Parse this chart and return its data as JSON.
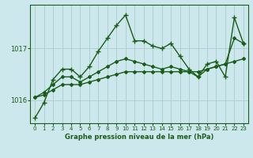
{
  "background_color": "#cce8ec",
  "grid_color": "#aacccc",
  "line_color": "#1a5c1a",
  "marker_color": "#1a5c1a",
  "title": "Graphe pression niveau de la mer (hPa)",
  "xlim": [
    -0.5,
    23.5
  ],
  "ylim": [
    1015.55,
    1017.85
  ],
  "yticks": [
    1016,
    1017
  ],
  "xticks": [
    0,
    1,
    2,
    3,
    4,
    5,
    6,
    7,
    8,
    9,
    10,
    11,
    12,
    13,
    14,
    15,
    16,
    17,
    18,
    19,
    20,
    21,
    22,
    23
  ],
  "series": [
    {
      "x": [
        0,
        1,
        2,
        3,
        4,
        5,
        6,
        7,
        8,
        9,
        10,
        11,
        12,
        13,
        14,
        15,
        16,
        17,
        18,
        19,
        20,
        21,
        22,
        23
      ],
      "y": [
        1016.05,
        1016.1,
        1016.2,
        1016.3,
        1016.3,
        1016.3,
        1016.35,
        1016.4,
        1016.45,
        1016.5,
        1016.55,
        1016.55,
        1016.55,
        1016.55,
        1016.55,
        1016.55,
        1016.55,
        1016.55,
        1016.55,
        1016.6,
        1016.65,
        1016.7,
        1016.75,
        1016.8
      ],
      "marker": "D",
      "markersize": 2,
      "linewidth": 1.0
    },
    {
      "x": [
        0,
        1,
        2,
        3,
        4,
        5,
        6,
        7,
        8,
        9,
        10,
        11,
        12,
        13,
        14,
        15,
        16,
        17,
        18,
        19,
        20,
        21,
        22,
        23
      ],
      "y": [
        1016.05,
        1016.15,
        1016.3,
        1016.45,
        1016.45,
        1016.35,
        1016.45,
        1016.55,
        1016.65,
        1016.75,
        1016.8,
        1016.75,
        1016.7,
        1016.65,
        1016.6,
        1016.65,
        1016.6,
        1016.55,
        1016.45,
        1016.6,
        1016.65,
        1016.7,
        1017.2,
        1017.1
      ],
      "marker": "D",
      "markersize": 2,
      "linewidth": 1.0
    },
    {
      "x": [
        0,
        1,
        2,
        3,
        4,
        5,
        6,
        7,
        8,
        9,
        10,
        11,
        12,
        13,
        14,
        15,
        16,
        17,
        18,
        19,
        20,
        21,
        22,
        23
      ],
      "y": [
        1015.65,
        1015.95,
        1016.4,
        1016.6,
        1016.6,
        1016.45,
        1016.65,
        1016.95,
        1017.2,
        1017.45,
        1017.65,
        1017.15,
        1017.15,
        1017.05,
        1017.0,
        1017.1,
        1016.85,
        1016.6,
        1016.45,
        1016.7,
        1016.75,
        1016.45,
        1017.6,
        1017.1
      ],
      "marker": "+",
      "markersize": 5,
      "linewidth": 1.0
    }
  ]
}
